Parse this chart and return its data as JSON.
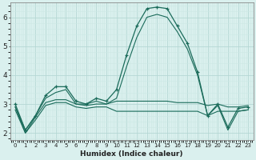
{
  "x": [
    0,
    1,
    2,
    3,
    4,
    5,
    6,
    7,
    8,
    9,
    10,
    11,
    12,
    13,
    14,
    15,
    16,
    17,
    18,
    19,
    20,
    21,
    22,
    23
  ],
  "line_main": [
    3.0,
    2.1,
    2.6,
    3.3,
    3.6,
    3.6,
    3.1,
    3.0,
    3.2,
    3.1,
    3.5,
    4.7,
    5.7,
    6.3,
    6.35,
    6.3,
    5.7,
    5.1,
    4.1,
    2.6,
    3.0,
    2.2,
    2.85,
    2.9
  ],
  "line_upper": [
    2.9,
    2.1,
    2.6,
    3.2,
    3.4,
    3.5,
    3.0,
    3.0,
    3.1,
    3.0,
    3.2,
    4.3,
    5.3,
    6.0,
    6.1,
    6.0,
    5.5,
    4.9,
    4.0,
    2.6,
    2.95,
    2.1,
    2.75,
    2.8
  ],
  "line_flat1": [
    2.9,
    2.0,
    2.55,
    3.05,
    3.15,
    3.15,
    3.0,
    2.95,
    3.0,
    3.0,
    3.1,
    3.1,
    3.1,
    3.1,
    3.1,
    3.1,
    3.05,
    3.05,
    3.05,
    2.95,
    3.0,
    2.9,
    2.9,
    2.95
  ],
  "line_flat2": [
    2.8,
    2.0,
    2.45,
    2.95,
    3.05,
    3.05,
    2.9,
    2.85,
    2.9,
    2.9,
    2.75,
    2.75,
    2.75,
    2.75,
    2.75,
    2.75,
    2.75,
    2.75,
    2.75,
    2.6,
    2.75,
    2.75,
    2.75,
    2.8
  ],
  "bg_color": "#daf0ee",
  "grid_color_major": "#b5d8d4",
  "grid_color_minor": "#cce8e5",
  "line_color": "#1a6b5a",
  "xlabel": "Humidex (Indice chaleur)",
  "ylim": [
    1.75,
    6.5
  ],
  "xlim": [
    -0.5,
    23.5
  ],
  "yticks": [
    2,
    3,
    4,
    5,
    6
  ],
  "xticks": [
    0,
    1,
    2,
    3,
    4,
    5,
    6,
    7,
    8,
    9,
    10,
    11,
    12,
    13,
    14,
    15,
    16,
    17,
    18,
    19,
    20,
    21,
    22,
    23
  ]
}
